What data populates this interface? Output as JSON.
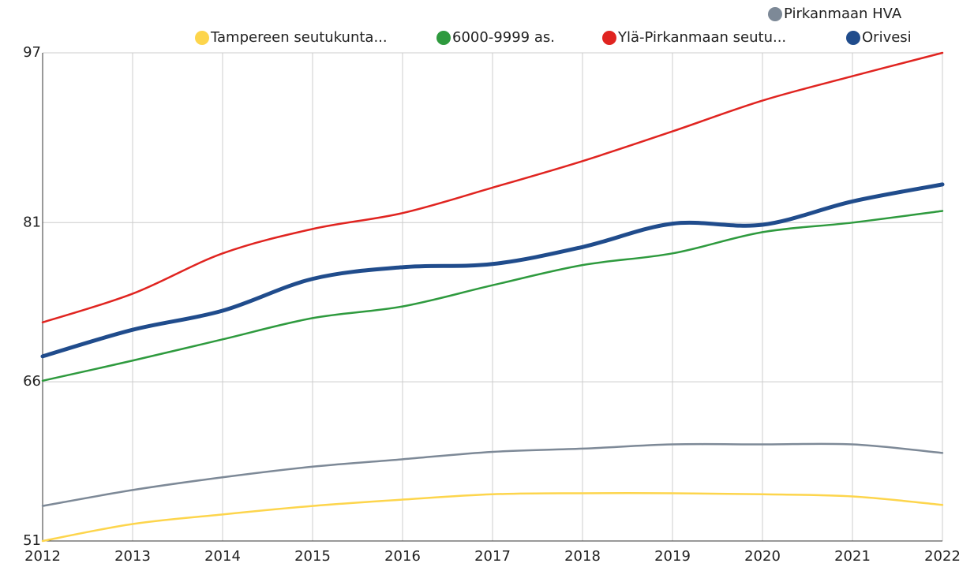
{
  "chart_data": {
    "type": "line",
    "x": [
      2012,
      2013,
      2014,
      2015,
      2016,
      2017,
      2018,
      2019,
      2020,
      2021,
      2022
    ],
    "xlim": [
      2012,
      2022
    ],
    "xticks": [
      2012,
      2013,
      2014,
      2015,
      2016,
      2017,
      2018,
      2019,
      2020,
      2021,
      2022
    ],
    "ylim": [
      51,
      97
    ],
    "yticks": [
      51,
      66,
      81,
      97
    ],
    "grid": true,
    "legend": "top-right",
    "series": [
      {
        "name": "Tampereen seutukunta...",
        "color": "#fdd54c",
        "values": [
          51.0,
          52.6,
          53.5,
          54.3,
          54.9,
          55.4,
          55.5,
          55.5,
          55.4,
          55.2,
          54.4
        ]
      },
      {
        "name": "6000-9999 as.",
        "color": "#2e9a3e",
        "values": [
          66.1,
          68.0,
          70.0,
          72.0,
          73.1,
          75.1,
          77.0,
          78.1,
          80.1,
          81.0,
          82.1
        ]
      },
      {
        "name": "Ylä-Pirkanmaan seutu...",
        "color": "#e02420",
        "values": [
          71.6,
          74.3,
          78.1,
          80.4,
          81.9,
          84.3,
          86.8,
          89.6,
          92.5,
          94.8,
          97.0
        ]
      },
      {
        "name": "Orivesi",
        "color": "#204c8c",
        "values": [
          68.4,
          70.9,
          72.7,
          75.7,
          76.8,
          77.1,
          78.7,
          80.9,
          80.8,
          83.0,
          84.6
        ]
      },
      {
        "name": "Pirkanmaan HVA",
        "color": "#7d8997",
        "values": [
          54.3,
          55.8,
          57.0,
          58.0,
          58.7,
          59.4,
          59.7,
          60.1,
          60.1,
          60.1,
          59.3
        ]
      }
    ]
  }
}
